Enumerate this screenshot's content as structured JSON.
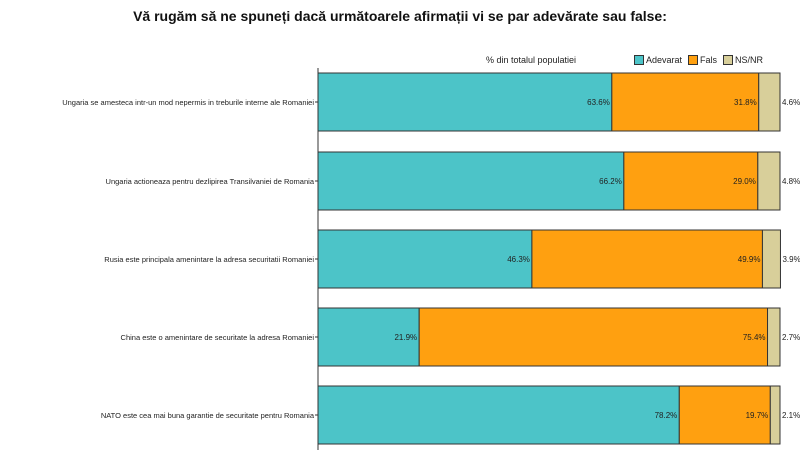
{
  "chart_data": {
    "type": "bar",
    "orientation": "horizontal",
    "stacked": true,
    "title": "Vă rugăm să ne spuneți dacă următoarele afirmații vi se par adevărate sau false:",
    "subtitle": "% din totalul populatiei",
    "legend_position": "top-right",
    "categories": [
      "Ungaria se amesteca intr-un mod nepermis in treburile interne ale Romaniei",
      "Ungaria actioneaza pentru dezlipirea Transilvaniei de Romania",
      "Rusia este principala amenintare la adresa securitatii Romaniei",
      "China este o amenintare de securitate la adresa Romaniei",
      "NATO este cea mai buna garantie de securitate pentru Romania"
    ],
    "series": [
      {
        "name": "Adevarat",
        "color": "#4cc4c8",
        "values": [
          63.6,
          66.2,
          46.3,
          21.9,
          78.2
        ],
        "labels": [
          "63.6%",
          "66.2%",
          "46.3%",
          "21.9%",
          "78.2%"
        ]
      },
      {
        "name": "Fals",
        "color": "#ffa010",
        "values": [
          31.8,
          29.0,
          49.9,
          75.4,
          19.7
        ],
        "labels": [
          "31.8%",
          "29.0%",
          "49.9%",
          "75.4%",
          "19.7%"
        ]
      },
      {
        "name": "NS/NR",
        "color": "#d8cf9a",
        "values": [
          4.6,
          4.8,
          3.9,
          2.7,
          2.1
        ],
        "labels": [
          "4.6%",
          "4.8%",
          "3.9%",
          "2.7%",
          "2.1%"
        ]
      }
    ],
    "xlim": [
      0,
      100
    ]
  }
}
